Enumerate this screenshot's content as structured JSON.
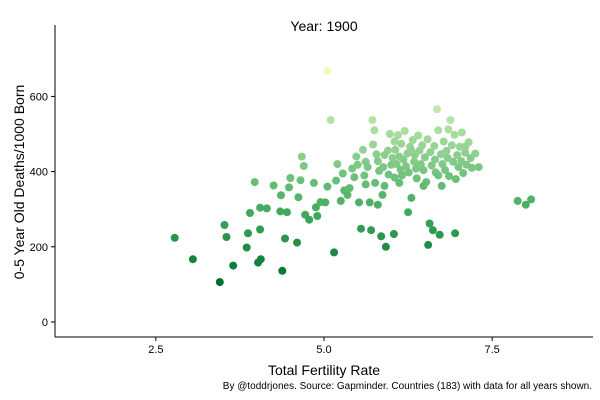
{
  "title": "Year: 1900",
  "caption": "By @toddrjones. Source: Gapminder. Countries (183) with data for all years shown.",
  "chart_data": {
    "type": "scatter",
    "title": "Year: 1900",
    "xlabel": "Total Fertility Rate",
    "ylabel": "0-5 Year Old Deaths/1000 Born",
    "xlim": [
      1.0,
      9.0
    ],
    "ylim": [
      -40,
      790
    ],
    "xticks": [
      2.5,
      5.0,
      7.5
    ],
    "yticks": [
      0,
      200,
      400,
      600
    ],
    "grid": false,
    "color_scale": [
      "#006d2c",
      "#41ab5d",
      "#a1d99b",
      "#f7fcb9"
    ],
    "points": [
      {
        "x": 2.78,
        "y": 224
      },
      {
        "x": 3.05,
        "y": 167
      },
      {
        "x": 3.45,
        "y": 106
      },
      {
        "x": 3.52,
        "y": 258
      },
      {
        "x": 3.55,
        "y": 226
      },
      {
        "x": 3.65,
        "y": 150
      },
      {
        "x": 3.85,
        "y": 198
      },
      {
        "x": 3.87,
        "y": 236
      },
      {
        "x": 3.9,
        "y": 290
      },
      {
        "x": 3.97,
        "y": 372
      },
      {
        "x": 4.02,
        "y": 158
      },
      {
        "x": 4.06,
        "y": 167
      },
      {
        "x": 4.05,
        "y": 246
      },
      {
        "x": 4.05,
        "y": 304
      },
      {
        "x": 4.15,
        "y": 302
      },
      {
        "x": 4.25,
        "y": 363
      },
      {
        "x": 4.36,
        "y": 337
      },
      {
        "x": 4.38,
        "y": 136
      },
      {
        "x": 4.42,
        "y": 222
      },
      {
        "x": 4.45,
        "y": 292
      },
      {
        "x": 4.48,
        "y": 358
      },
      {
        "x": 4.5,
        "y": 383
      },
      {
        "x": 4.6,
        "y": 211
      },
      {
        "x": 4.62,
        "y": 332
      },
      {
        "x": 4.65,
        "y": 377
      },
      {
        "x": 4.67,
        "y": 440
      },
      {
        "x": 4.7,
        "y": 415
      },
      {
        "x": 4.72,
        "y": 285
      },
      {
        "x": 4.78,
        "y": 272
      },
      {
        "x": 4.85,
        "y": 370
      },
      {
        "x": 4.88,
        "y": 305
      },
      {
        "x": 4.95,
        "y": 319
      },
      {
        "x": 5.02,
        "y": 318
      },
      {
        "x": 5.05,
        "y": 668
      },
      {
        "x": 5.1,
        "y": 537
      },
      {
        "x": 5.15,
        "y": 185
      },
      {
        "x": 5.18,
        "y": 376
      },
      {
        "x": 5.2,
        "y": 420
      },
      {
        "x": 5.25,
        "y": 322
      },
      {
        "x": 5.28,
        "y": 395
      },
      {
        "x": 5.3,
        "y": 350
      },
      {
        "x": 5.35,
        "y": 338
      },
      {
        "x": 5.38,
        "y": 356
      },
      {
        "x": 5.42,
        "y": 408
      },
      {
        "x": 5.45,
        "y": 385
      },
      {
        "x": 5.48,
        "y": 440
      },
      {
        "x": 5.5,
        "y": 418
      },
      {
        "x": 5.52,
        "y": 318
      },
      {
        "x": 5.55,
        "y": 248
      },
      {
        "x": 5.58,
        "y": 458
      },
      {
        "x": 5.6,
        "y": 390
      },
      {
        "x": 5.62,
        "y": 426
      },
      {
        "x": 5.65,
        "y": 412
      },
      {
        "x": 5.68,
        "y": 318
      },
      {
        "x": 5.7,
        "y": 244
      },
      {
        "x": 5.72,
        "y": 537
      },
      {
        "x": 5.73,
        "y": 472
      },
      {
        "x": 5.75,
        "y": 510
      },
      {
        "x": 5.76,
        "y": 370
      },
      {
        "x": 5.78,
        "y": 446
      },
      {
        "x": 5.8,
        "y": 428
      },
      {
        "x": 5.82,
        "y": 402
      },
      {
        "x": 5.85,
        "y": 228
      },
      {
        "x": 5.87,
        "y": 338
      },
      {
        "x": 5.88,
        "y": 412
      },
      {
        "x": 5.9,
        "y": 362
      },
      {
        "x": 5.92,
        "y": 200
      },
      {
        "x": 5.95,
        "y": 456
      },
      {
        "x": 5.96,
        "y": 392
      },
      {
        "x": 5.98,
        "y": 500
      },
      {
        "x": 6.0,
        "y": 418
      },
      {
        "x": 6.02,
        "y": 436
      },
      {
        "x": 6.04,
        "y": 234
      },
      {
        "x": 6.05,
        "y": 384
      },
      {
        "x": 6.06,
        "y": 458
      },
      {
        "x": 6.08,
        "y": 420
      },
      {
        "x": 6.1,
        "y": 497
      },
      {
        "x": 6.12,
        "y": 440
      },
      {
        "x": 6.14,
        "y": 405
      },
      {
        "x": 6.15,
        "y": 474
      },
      {
        "x": 6.16,
        "y": 390
      },
      {
        "x": 6.18,
        "y": 432
      },
      {
        "x": 6.2,
        "y": 508
      },
      {
        "x": 6.22,
        "y": 414
      },
      {
        "x": 6.24,
        "y": 448
      },
      {
        "x": 6.25,
        "y": 292
      },
      {
        "x": 6.26,
        "y": 398
      },
      {
        "x": 6.28,
        "y": 466
      },
      {
        "x": 6.3,
        "y": 330
      },
      {
        "x": 6.32,
        "y": 484
      },
      {
        "x": 6.34,
        "y": 426
      },
      {
        "x": 6.35,
        "y": 444
      },
      {
        "x": 6.37,
        "y": 408
      },
      {
        "x": 6.38,
        "y": 382
      },
      {
        "x": 6.4,
        "y": 496
      },
      {
        "x": 6.42,
        "y": 456
      },
      {
        "x": 6.44,
        "y": 420
      },
      {
        "x": 6.46,
        "y": 470
      },
      {
        "x": 6.48,
        "y": 404
      },
      {
        "x": 6.5,
        "y": 438
      },
      {
        "x": 6.52,
        "y": 372
      },
      {
        "x": 6.54,
        "y": 486
      },
      {
        "x": 6.55,
        "y": 205
      },
      {
        "x": 6.57,
        "y": 262
      },
      {
        "x": 6.58,
        "y": 452
      },
      {
        "x": 6.6,
        "y": 416
      },
      {
        "x": 6.62,
        "y": 244
      },
      {
        "x": 6.64,
        "y": 468
      },
      {
        "x": 6.65,
        "y": 432
      },
      {
        "x": 6.66,
        "y": 398
      },
      {
        "x": 6.68,
        "y": 566
      },
      {
        "x": 6.7,
        "y": 510
      },
      {
        "x": 6.72,
        "y": 232
      },
      {
        "x": 6.74,
        "y": 446
      },
      {
        "x": 6.75,
        "y": 362
      },
      {
        "x": 6.76,
        "y": 420
      },
      {
        "x": 6.78,
        "y": 480
      },
      {
        "x": 6.8,
        "y": 404
      },
      {
        "x": 6.82,
        "y": 455
      },
      {
        "x": 6.84,
        "y": 436
      },
      {
        "x": 6.85,
        "y": 512
      },
      {
        "x": 6.86,
        "y": 388
      },
      {
        "x": 6.88,
        "y": 537
      },
      {
        "x": 6.9,
        "y": 470
      },
      {
        "x": 6.92,
        "y": 426
      },
      {
        "x": 6.94,
        "y": 498
      },
      {
        "x": 6.95,
        "y": 236
      },
      {
        "x": 6.96,
        "y": 380
      },
      {
        "x": 6.98,
        "y": 444
      },
      {
        "x": 7.0,
        "y": 412
      },
      {
        "x": 7.02,
        "y": 466
      },
      {
        "x": 7.04,
        "y": 428
      },
      {
        "x": 7.05,
        "y": 504
      },
      {
        "x": 7.07,
        "y": 396
      },
      {
        "x": 7.1,
        "y": 450
      },
      {
        "x": 7.12,
        "y": 418
      },
      {
        "x": 7.15,
        "y": 478
      },
      {
        "x": 7.18,
        "y": 436
      },
      {
        "x": 7.2,
        "y": 410
      },
      {
        "x": 7.25,
        "y": 448
      },
      {
        "x": 7.3,
        "y": 412
      },
      {
        "x": 7.88,
        "y": 322
      },
      {
        "x": 8.0,
        "y": 312
      },
      {
        "x": 8.08,
        "y": 326
      },
      {
        "x": 5.8,
        "y": 312
      },
      {
        "x": 6.48,
        "y": 362
      },
      {
        "x": 6.12,
        "y": 370
      },
      {
        "x": 5.62,
        "y": 366
      },
      {
        "x": 5.05,
        "y": 360
      },
      {
        "x": 4.9,
        "y": 282
      },
      {
        "x": 4.35,
        "y": 294
      },
      {
        "x": 6.3,
        "y": 456
      },
      {
        "x": 6.05,
        "y": 480
      },
      {
        "x": 5.9,
        "y": 444
      },
      {
        "x": 6.7,
        "y": 390
      },
      {
        "x": 7.1,
        "y": 466
      }
    ]
  }
}
